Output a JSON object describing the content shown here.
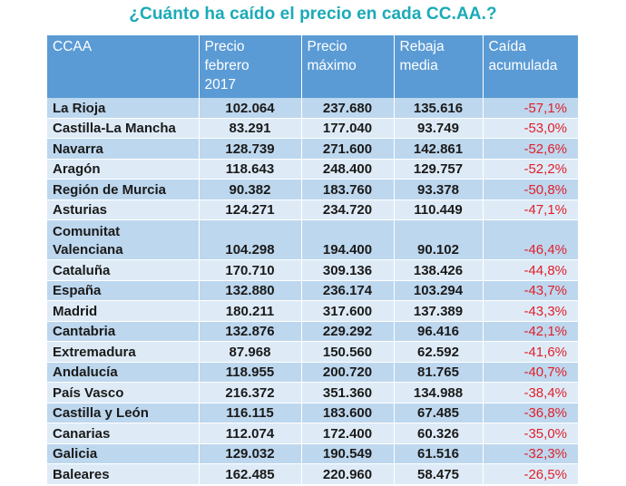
{
  "title": "¿Cuánto ha caído el precio en cada CC.AA.?",
  "chart_data": {
    "type": "table",
    "title": "¿Cuánto ha caído el precio en cada CC.AA.?",
    "columns": [
      "CCAA",
      "Precio febrero 2017",
      "Precio máximo",
      "Rebaja media",
      "Caída acumulada"
    ],
    "header_lines": [
      [
        "CCAA"
      ],
      [
        "Precio",
        "febrero",
        "2017"
      ],
      [
        "Precio",
        "máximo"
      ],
      [
        "Rebaja",
        "media"
      ],
      [
        "Caída",
        "acumulada"
      ]
    ],
    "rows": [
      {
        "ccaa": "La Rioja",
        "precio_feb_2017": "102.064",
        "precio_maximo": "237.680",
        "rebaja_media": "135.616",
        "caida": "-57,1%"
      },
      {
        "ccaa": "Castilla-La Mancha",
        "precio_feb_2017": "83.291",
        "precio_maximo": "177.040",
        "rebaja_media": "93.749",
        "caida": "-53,0%"
      },
      {
        "ccaa": "Navarra",
        "precio_feb_2017": "128.739",
        "precio_maximo": "271.600",
        "rebaja_media": "142.861",
        "caida": "-52,6%"
      },
      {
        "ccaa": "Aragón",
        "precio_feb_2017": "118.643",
        "precio_maximo": "248.400",
        "rebaja_media": "129.757",
        "caida": "-52,2%"
      },
      {
        "ccaa": "Región de Murcia",
        "precio_feb_2017": "90.382",
        "precio_maximo": "183.760",
        "rebaja_media": "93.378",
        "caida": "-50,8%"
      },
      {
        "ccaa": "Asturias",
        "precio_feb_2017": "124.271",
        "precio_maximo": "234.720",
        "rebaja_media": "110.449",
        "caida": "-47,1%"
      },
      {
        "ccaa": "Comunitat Valenciana",
        "precio_feb_2017": "104.298",
        "precio_maximo": "194.400",
        "rebaja_media": "90.102",
        "caida": "-46,4%"
      },
      {
        "ccaa": "Cataluña",
        "precio_feb_2017": "170.710",
        "precio_maximo": "309.136",
        "rebaja_media": "138.426",
        "caida": "-44,8%"
      },
      {
        "ccaa": "España",
        "precio_feb_2017": "132.880",
        "precio_maximo": "236.174",
        "rebaja_media": "103.294",
        "caida": "-43,7%"
      },
      {
        "ccaa": "Madrid",
        "precio_feb_2017": "180.211",
        "precio_maximo": "317.600",
        "rebaja_media": "137.389",
        "caida": "-43,3%"
      },
      {
        "ccaa": "Cantabria",
        "precio_feb_2017": "132.876",
        "precio_maximo": "229.292",
        "rebaja_media": "96.416",
        "caida": "-42,1%"
      },
      {
        "ccaa": "Extremadura",
        "precio_feb_2017": "87.968",
        "precio_maximo": "150.560",
        "rebaja_media": "62.592",
        "caida": "-41,6%"
      },
      {
        "ccaa": "Andalucía",
        "precio_feb_2017": "118.955",
        "precio_maximo": "200.720",
        "rebaja_media": "81.765",
        "caida": "-40,7%"
      },
      {
        "ccaa": "País Vasco",
        "precio_feb_2017": "216.372",
        "precio_maximo": "351.360",
        "rebaja_media": "134.988",
        "caida": "-38,4%"
      },
      {
        "ccaa": "Castilla y León",
        "precio_feb_2017": "116.115",
        "precio_maximo": "183.600",
        "rebaja_media": "67.485",
        "caida": "-36,8%"
      },
      {
        "ccaa": "Canarias",
        "precio_feb_2017": "112.074",
        "precio_maximo": "172.400",
        "rebaja_media": "60.326",
        "caida": "-35,0%"
      },
      {
        "ccaa": "Galicia",
        "precio_feb_2017": "129.032",
        "precio_maximo": "190.549",
        "rebaja_media": "61.516",
        "caida": "-32,3%"
      },
      {
        "ccaa": "Baleares",
        "precio_feb_2017": "162.485",
        "precio_maximo": "220.960",
        "rebaja_media": "58.475",
        "caida": "-26,5%"
      }
    ]
  },
  "colors": {
    "title": "#1aaab8",
    "header_bg": "#5b9bd5",
    "row_odd": "#bdd7ee",
    "row_even": "#deebf7",
    "negative": "#e0202a"
  }
}
